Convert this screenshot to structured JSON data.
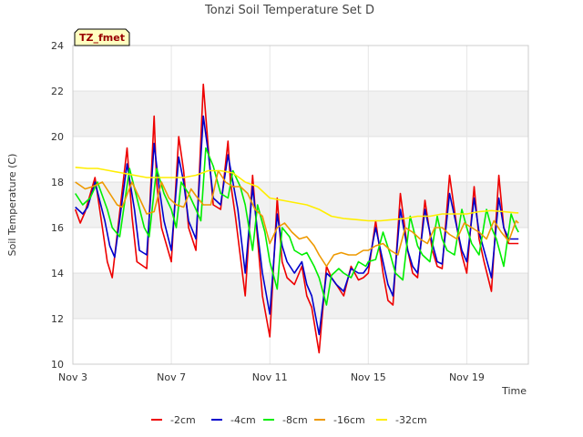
{
  "chart_data": {
    "type": "line",
    "title": "Tonzi Soil Temperature Set D",
    "xlabel": "Time",
    "ylabel": "Soil Temperature (C)",
    "badge": "TZ_fmet",
    "xlim": [
      3,
      21.5
    ],
    "ylim": [
      10,
      24
    ],
    "x_ticks": [
      3,
      7,
      11,
      15,
      19
    ],
    "x_tick_labels": [
      "Nov 3",
      "Nov 7",
      "Nov 11",
      "Nov 15",
      "Nov 19"
    ],
    "y_ticks": [
      10,
      12,
      14,
      16,
      18,
      20,
      22,
      24
    ],
    "y_tick_labels": [
      "10",
      "12",
      "14",
      "16",
      "18",
      "20",
      "22",
      "24"
    ],
    "legend_position": "bottom-center",
    "series": [
      {
        "name": "-2cm",
        "color": "#ee0000",
        "x": [
          3.1,
          3.3,
          3.5,
          3.9,
          4.2,
          4.4,
          4.6,
          5.2,
          5.4,
          5.6,
          6.0,
          6.3,
          6.4,
          6.6,
          7.0,
          7.3,
          7.5,
          7.7,
          8.0,
          8.3,
          8.5,
          8.7,
          9.0,
          9.3,
          9.4,
          9.6,
          10.0,
          10.3,
          10.5,
          10.7,
          11.0,
          11.3,
          11.5,
          11.7,
          12.0,
          12.3,
          12.5,
          12.7,
          13.0,
          13.3,
          13.5,
          13.7,
          14.0,
          14.3,
          14.6,
          14.8,
          15.0,
          15.3,
          15.6,
          15.8,
          16.0,
          16.3,
          16.6,
          16.8,
          17.0,
          17.3,
          17.6,
          17.8,
          18.0,
          18.3,
          18.6,
          18.8,
          19.0,
          19.3,
          19.5,
          19.7,
          20.0,
          20.3,
          20.5,
          20.7,
          21.0,
          21.1
        ],
        "y": [
          16.8,
          16.2,
          16.7,
          18.2,
          16.0,
          14.5,
          13.8,
          19.5,
          16.5,
          14.5,
          14.2,
          20.9,
          18.0,
          16.0,
          14.5,
          20.0,
          18.5,
          16.0,
          15.0,
          22.3,
          19.5,
          17.0,
          16.8,
          19.8,
          18.0,
          16.5,
          13.0,
          18.3,
          15.5,
          13.0,
          11.2,
          17.3,
          14.5,
          13.8,
          13.5,
          14.3,
          13.0,
          12.5,
          10.5,
          14.3,
          13.8,
          13.5,
          13.0,
          14.3,
          13.7,
          13.8,
          14.0,
          16.3,
          14.0,
          12.8,
          12.6,
          17.5,
          15.0,
          14.0,
          13.8,
          17.2,
          15.0,
          14.3,
          14.2,
          18.3,
          16.0,
          14.8,
          14.0,
          17.8,
          15.5,
          14.5,
          13.2,
          18.3,
          16.0,
          15.3,
          15.3,
          15.3
        ]
      },
      {
        "name": "-4cm",
        "color": "#0000cc",
        "x": [
          3.1,
          3.4,
          3.6,
          3.9,
          4.3,
          4.5,
          4.7,
          5.2,
          5.5,
          5.7,
          6.0,
          6.3,
          6.5,
          6.7,
          7.0,
          7.3,
          7.5,
          7.7,
          8.0,
          8.3,
          8.5,
          8.7,
          9.0,
          9.3,
          9.5,
          9.7,
          10.0,
          10.3,
          10.5,
          10.7,
          11.0,
          11.3,
          11.5,
          11.7,
          12.0,
          12.3,
          12.5,
          12.7,
          13.0,
          13.3,
          13.5,
          13.7,
          14.0,
          14.3,
          14.6,
          14.8,
          15.0,
          15.3,
          15.6,
          15.8,
          16.0,
          16.3,
          16.6,
          16.8,
          17.0,
          17.3,
          17.6,
          17.8,
          18.0,
          18.3,
          18.6,
          18.8,
          19.0,
          19.3,
          19.5,
          19.7,
          20.0,
          20.3,
          20.5,
          20.7,
          21.0,
          21.1
        ],
        "y": [
          16.9,
          16.6,
          16.9,
          18.0,
          16.3,
          15.2,
          14.7,
          18.8,
          16.8,
          15.0,
          14.8,
          19.7,
          17.8,
          16.3,
          15.0,
          19.1,
          18.0,
          16.3,
          15.5,
          20.9,
          19.3,
          17.3,
          17.0,
          19.2,
          18.0,
          16.8,
          14.0,
          17.8,
          15.8,
          14.0,
          12.2,
          16.6,
          15.2,
          14.5,
          14.0,
          14.5,
          13.5,
          13.0,
          11.3,
          14.0,
          13.8,
          13.5,
          13.2,
          14.2,
          14.0,
          14.0,
          14.3,
          16.0,
          14.5,
          13.5,
          13.0,
          16.8,
          15.0,
          14.3,
          14.0,
          16.8,
          15.3,
          14.5,
          14.4,
          17.5,
          16.0,
          15.0,
          14.5,
          17.3,
          15.8,
          15.0,
          13.8,
          17.3,
          16.0,
          15.5,
          15.5,
          15.5
        ]
      },
      {
        "name": "-8cm",
        "color": "#00ee00",
        "x": [
          3.1,
          3.4,
          3.7,
          4.0,
          4.4,
          4.6,
          4.9,
          5.3,
          5.6,
          5.9,
          6.1,
          6.4,
          6.7,
          7.0,
          7.2,
          7.4,
          7.7,
          8.0,
          8.2,
          8.4,
          8.7,
          9.0,
          9.3,
          9.5,
          9.8,
          10.0,
          10.3,
          10.5,
          10.8,
          11.0,
          11.3,
          11.5,
          11.8,
          12.0,
          12.3,
          12.5,
          12.8,
          13.0,
          13.3,
          13.5,
          13.8,
          14.0,
          14.3,
          14.6,
          14.9,
          15.0,
          15.3,
          15.6,
          15.9,
          16.1,
          16.4,
          16.7,
          17.0,
          17.2,
          17.5,
          17.8,
          18.0,
          18.2,
          18.5,
          18.8,
          19.0,
          19.2,
          19.5,
          19.8,
          20.0,
          20.2,
          20.5,
          20.8,
          21.0,
          21.1
        ],
        "y": [
          17.5,
          17.0,
          17.3,
          18.0,
          16.8,
          16.0,
          15.6,
          18.6,
          17.3,
          16.0,
          15.6,
          18.6,
          17.5,
          16.8,
          16.0,
          18.0,
          17.5,
          16.8,
          16.3,
          19.5,
          18.7,
          17.5,
          17.3,
          18.5,
          17.8,
          17.0,
          15.0,
          17.0,
          15.8,
          14.5,
          13.3,
          16.0,
          15.6,
          15.0,
          14.8,
          14.9,
          14.3,
          13.8,
          12.6,
          13.9,
          14.2,
          14.0,
          13.8,
          14.5,
          14.3,
          14.5,
          14.6,
          15.8,
          14.8,
          14.0,
          13.7,
          16.5,
          15.2,
          14.8,
          14.5,
          16.5,
          15.5,
          15.0,
          14.8,
          16.8,
          16.0,
          15.3,
          14.8,
          16.8,
          16.0,
          15.5,
          14.3,
          16.6,
          16.0,
          15.8
        ]
      },
      {
        "name": "-16cm",
        "color": "#ee9900",
        "x": [
          3.1,
          3.5,
          3.8,
          4.2,
          4.5,
          4.8,
          5.0,
          5.4,
          5.7,
          6.0,
          6.3,
          6.6,
          6.9,
          7.2,
          7.5,
          7.8,
          8.0,
          8.3,
          8.6,
          8.9,
          9.2,
          9.5,
          9.8,
          10.1,
          10.4,
          10.7,
          11.0,
          11.3,
          11.6,
          11.9,
          12.2,
          12.5,
          12.8,
          13.0,
          13.3,
          13.6,
          13.9,
          14.2,
          14.5,
          14.8,
          15.0,
          15.3,
          15.6,
          15.9,
          16.2,
          16.5,
          16.8,
          17.1,
          17.4,
          17.7,
          18.0,
          18.3,
          18.6,
          18.9,
          19.2,
          19.5,
          19.8,
          20.1,
          20.4,
          20.7,
          21.0,
          21.1
        ],
        "y": [
          18.0,
          17.7,
          17.8,
          18.0,
          17.5,
          17.0,
          16.9,
          18.0,
          17.3,
          16.6,
          16.7,
          18.0,
          17.3,
          17.0,
          16.9,
          17.7,
          17.4,
          17.0,
          17.0,
          18.5,
          18.0,
          17.8,
          17.8,
          17.5,
          16.8,
          16.5,
          15.3,
          16.0,
          16.2,
          15.8,
          15.5,
          15.6,
          15.2,
          14.8,
          14.3,
          14.8,
          14.9,
          14.8,
          14.8,
          15.0,
          15.0,
          15.2,
          15.3,
          15.0,
          14.8,
          16.0,
          15.8,
          15.5,
          15.3,
          16.0,
          16.0,
          15.7,
          15.5,
          16.2,
          16.0,
          15.8,
          15.5,
          16.3,
          15.8,
          15.4,
          16.3,
          16.2
        ]
      },
      {
        "name": "-32cm",
        "color": "#ffee00",
        "x": [
          3.1,
          3.6,
          4.0,
          4.5,
          5.0,
          5.5,
          6.0,
          6.5,
          7.0,
          7.5,
          8.0,
          8.5,
          9.0,
          9.5,
          10.0,
          10.5,
          11.0,
          11.5,
          12.0,
          12.5,
          13.0,
          13.5,
          14.0,
          14.5,
          15.0,
          15.5,
          16.0,
          16.5,
          17.0,
          17.5,
          18.0,
          18.5,
          19.0,
          19.5,
          20.0,
          20.5,
          21.0,
          21.1
        ],
        "y": [
          18.65,
          18.6,
          18.6,
          18.5,
          18.4,
          18.3,
          18.2,
          18.2,
          18.2,
          18.2,
          18.3,
          18.5,
          18.5,
          18.4,
          18.0,
          17.8,
          17.3,
          17.2,
          17.1,
          17.0,
          16.8,
          16.5,
          16.4,
          16.35,
          16.3,
          16.3,
          16.35,
          16.4,
          16.5,
          16.5,
          16.6,
          16.6,
          16.6,
          16.7,
          16.75,
          16.7,
          16.65,
          16.65
        ]
      }
    ]
  }
}
